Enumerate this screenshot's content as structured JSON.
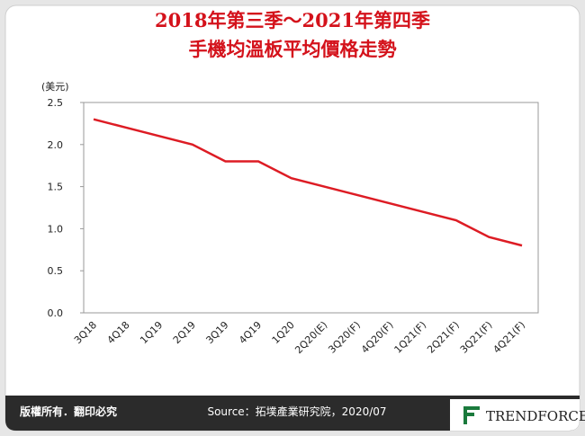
{
  "chart_data": {
    "type": "line",
    "title": [
      "2018年第三季～2021年第四季",
      "手機均溫板平均價格走勢"
    ],
    "y_label": "(美元)",
    "categories": [
      "3Q18",
      "4Q18",
      "1Q19",
      "2Q19",
      "3Q19",
      "4Q19",
      "1Q20",
      "2Q20(E)",
      "3Q20(F)",
      "4Q20(F)",
      "1Q21(F)",
      "2Q21(F)",
      "3Q21(F)",
      "4Q21(F)"
    ],
    "values": [
      2.3,
      2.2,
      2.1,
      2.0,
      1.8,
      1.8,
      1.6,
      1.5,
      1.4,
      1.3,
      1.2,
      1.1,
      0.9,
      0.8
    ],
    "color": "#dd1c24",
    "ylim": [
      0,
      2.5
    ],
    "yticks": [
      {
        "value": 0,
        "label": "0.0"
      },
      0.5,
      {
        "value": 1,
        "label": "1.0"
      },
      1.5,
      {
        "value": 2,
        "label": "2.0"
      },
      2.5
    ],
    "grid": false
  },
  "footer": {
    "copyright": "版權所有．翻印必究",
    "source": "Source：拓墣產業研究院，2020/07",
    "logo": "TRENDFORCE"
  }
}
